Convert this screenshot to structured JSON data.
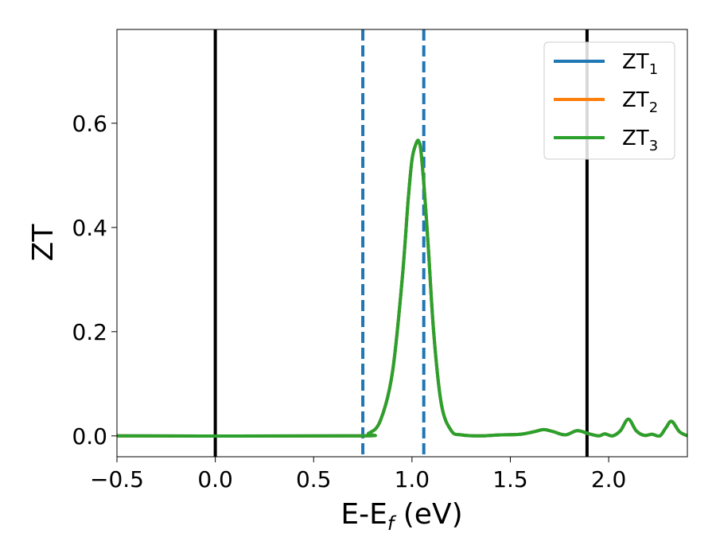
{
  "chart_data": {
    "type": "line",
    "xlabel": "E-E",
    "xlabel_sub": "f",
    "xlabel_unit": " (eV)",
    "ylabel": "ZT",
    "xlim": [
      -0.5,
      2.4
    ],
    "ylim": [
      -0.04,
      0.78
    ],
    "x_ticks": [
      -0.5,
      0.0,
      0.5,
      1.0,
      1.5,
      2.0
    ],
    "x_tick_labels": [
      "−0.5",
      "0.0",
      "0.5",
      "1.0",
      "1.5",
      "2.0"
    ],
    "y_ticks": [
      0.0,
      0.2,
      0.4,
      0.6
    ],
    "y_tick_labels": [
      "0.0",
      "0.2",
      "0.4",
      "0.6"
    ],
    "grid": false,
    "legend_position": "top-right",
    "vertical_lines": [
      {
        "x": 0.0,
        "style": "solid",
        "color": "#000000"
      },
      {
        "x": 1.89,
        "style": "solid",
        "color": "#000000"
      },
      {
        "x": 0.75,
        "style": "dashed",
        "color": "#1f77b4"
      },
      {
        "x": 1.06,
        "style": "dashed",
        "color": "#1f77b4"
      }
    ],
    "series": [
      {
        "name": "ZT",
        "sub": "1",
        "color": "#1f77b4",
        "x": [
          -0.5,
          0.7,
          0.78,
          0.84,
          0.9,
          0.95,
          0.98,
          1.0,
          1.02,
          1.035,
          1.05,
          1.08,
          1.11,
          1.15,
          1.2,
          1.25,
          1.35,
          1.45,
          1.55,
          1.62,
          1.67,
          1.72,
          1.78,
          1.84,
          1.9,
          1.95,
          1.98,
          2.02,
          2.06,
          2.1,
          2.14,
          2.18,
          2.22,
          2.26,
          2.29,
          2.32,
          2.36,
          2.4
        ],
        "y": [
          0.0,
          0.0,
          0.005,
          0.03,
          0.12,
          0.3,
          0.45,
          0.53,
          0.56,
          0.565,
          0.53,
          0.38,
          0.2,
          0.06,
          0.01,
          0.002,
          0.0,
          0.002,
          0.003,
          0.008,
          0.012,
          0.008,
          0.002,
          0.01,
          0.004,
          0.0,
          0.004,
          0.0,
          0.01,
          0.032,
          0.01,
          0.001,
          0.003,
          0.0,
          0.015,
          0.028,
          0.008,
          0.0
        ]
      },
      {
        "name": "ZT",
        "sub": "2",
        "color": "#ff7f0e",
        "x": [
          -0.5,
          0.7,
          0.78,
          0.84,
          0.9,
          0.95,
          0.98,
          1.0,
          1.02,
          1.035,
          1.05,
          1.08,
          1.11,
          1.15,
          1.2,
          1.25,
          1.35,
          1.45,
          1.55,
          1.62,
          1.67,
          1.72,
          1.78,
          1.84,
          1.9,
          1.95,
          1.98,
          2.02,
          2.06,
          2.1,
          2.14,
          2.18,
          2.22,
          2.26,
          2.29,
          2.32,
          2.36,
          2.4
        ],
        "y": [
          0.0,
          0.0,
          0.005,
          0.03,
          0.12,
          0.3,
          0.45,
          0.53,
          0.56,
          0.565,
          0.53,
          0.38,
          0.2,
          0.06,
          0.01,
          0.002,
          0.0,
          0.002,
          0.003,
          0.008,
          0.012,
          0.008,
          0.002,
          0.01,
          0.004,
          0.0,
          0.004,
          0.0,
          0.01,
          0.032,
          0.01,
          0.001,
          0.003,
          0.0,
          0.015,
          0.028,
          0.008,
          0.0
        ]
      },
      {
        "name": "ZT",
        "sub": "3",
        "color": "#2ca02c",
        "x": [
          -0.5,
          0.7,
          0.78,
          0.84,
          0.9,
          0.95,
          0.98,
          1.0,
          1.02,
          1.035,
          1.05,
          1.08,
          1.11,
          1.15,
          1.2,
          1.25,
          1.35,
          1.45,
          1.55,
          1.62,
          1.67,
          1.72,
          1.78,
          1.84,
          1.9,
          1.95,
          1.98,
          2.02,
          2.06,
          2.1,
          2.14,
          2.18,
          2.22,
          2.26,
          2.29,
          2.32,
          2.36,
          2.4
        ],
        "y": [
          0.0,
          0.0,
          0.005,
          0.03,
          0.12,
          0.3,
          0.45,
          0.53,
          0.56,
          0.565,
          0.53,
          0.38,
          0.2,
          0.06,
          0.01,
          0.002,
          0.0,
          0.002,
          0.003,
          0.008,
          0.012,
          0.008,
          0.002,
          0.01,
          0.004,
          0.0,
          0.004,
          0.0,
          0.01,
          0.032,
          0.01,
          0.001,
          0.003,
          0.0,
          0.015,
          0.028,
          0.008,
          0.0
        ]
      }
    ]
  }
}
